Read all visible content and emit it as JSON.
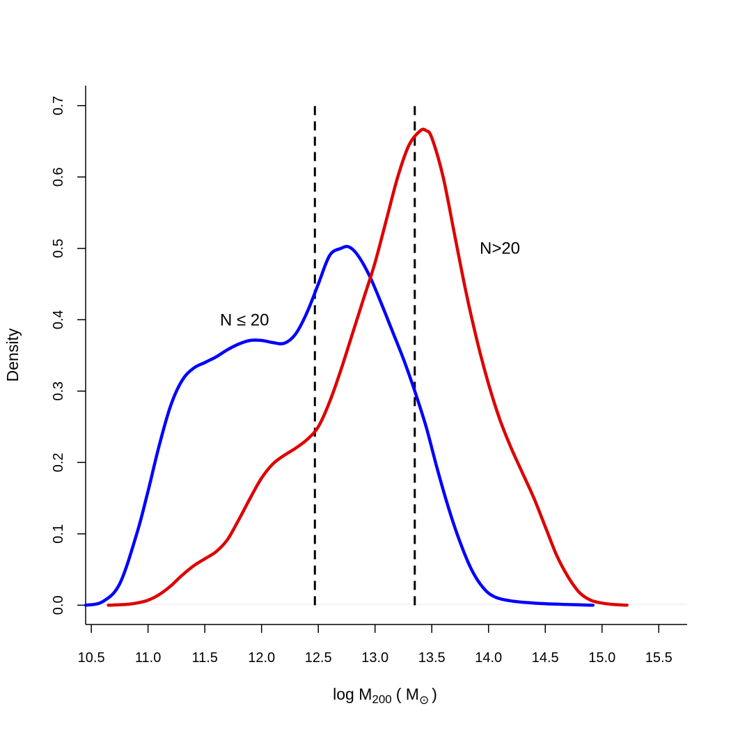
{
  "chart_data": {
    "type": "line",
    "title": "",
    "xlabel": "log M",
    "xlabel_subscript": "200",
    "xlabel_unit_open": "( M",
    "xlabel_unit_symbol": "⊙",
    "xlabel_unit_close": ")",
    "ylabel": "Density",
    "xlim": [
      10.45,
      15.75
    ],
    "ylim": [
      -0.027,
      0.728
    ],
    "xticks": [
      10.5,
      11.0,
      11.5,
      12.0,
      12.5,
      13.0,
      13.5,
      14.0,
      14.5,
      15.0,
      15.5
    ],
    "xtick_labels": [
      "10.5",
      "11.0",
      "11.5",
      "12.0",
      "12.5",
      "13.0",
      "13.5",
      "14.0",
      "14.5",
      "15.0",
      "15.5"
    ],
    "yticks": [
      0.0,
      0.1,
      0.2,
      0.3,
      0.4,
      0.5,
      0.6,
      0.7
    ],
    "ytick_labels": [
      "0.0",
      "0.1",
      "0.2",
      "0.3",
      "0.4",
      "0.5",
      "0.6",
      "0.7"
    ],
    "series": [
      {
        "name": "N ≤ 20",
        "color": "#0000ff",
        "x": [
          10.45,
          10.6,
          10.75,
          10.9,
          11.0,
          11.1,
          11.2,
          11.3,
          11.4,
          11.5,
          11.6,
          11.7,
          11.8,
          11.9,
          12.0,
          12.1,
          12.2,
          12.3,
          12.4,
          12.5,
          12.6,
          12.7,
          12.77,
          12.85,
          12.95,
          13.05,
          13.15,
          13.25,
          13.35,
          13.45,
          13.55,
          13.65,
          13.75,
          13.85,
          13.95,
          14.05,
          14.2,
          14.4,
          14.6,
          14.8,
          14.92
        ],
        "y": [
          0.0,
          0.005,
          0.03,
          0.1,
          0.16,
          0.225,
          0.28,
          0.315,
          0.332,
          0.34,
          0.348,
          0.358,
          0.366,
          0.371,
          0.371,
          0.368,
          0.367,
          0.38,
          0.41,
          0.45,
          0.49,
          0.5,
          0.502,
          0.49,
          0.462,
          0.425,
          0.385,
          0.345,
          0.3,
          0.25,
          0.19,
          0.135,
          0.088,
          0.05,
          0.025,
          0.012,
          0.006,
          0.003,
          0.0015,
          0.0005,
          0.0
        ]
      },
      {
        "name": "N>20",
        "color": "#dd0000",
        "x": [
          10.65,
          10.8,
          10.9,
          11.0,
          11.1,
          11.2,
          11.3,
          11.4,
          11.5,
          11.6,
          11.7,
          11.8,
          11.9,
          12.0,
          12.1,
          12.2,
          12.3,
          12.4,
          12.5,
          12.6,
          12.7,
          12.8,
          12.9,
          13.0,
          13.1,
          13.2,
          13.3,
          13.4,
          13.45,
          13.5,
          13.6,
          13.7,
          13.8,
          13.9,
          14.0,
          14.1,
          14.2,
          14.3,
          14.4,
          14.5,
          14.6,
          14.7,
          14.8,
          14.9,
          15.0,
          15.1,
          15.22
        ],
        "y": [
          0.0,
          0.001,
          0.003,
          0.007,
          0.015,
          0.027,
          0.042,
          0.055,
          0.065,
          0.075,
          0.092,
          0.12,
          0.15,
          0.178,
          0.198,
          0.21,
          0.22,
          0.232,
          0.25,
          0.285,
          0.33,
          0.38,
          0.43,
          0.48,
          0.54,
          0.6,
          0.645,
          0.665,
          0.665,
          0.655,
          0.6,
          0.52,
          0.44,
          0.37,
          0.31,
          0.26,
          0.22,
          0.185,
          0.15,
          0.11,
          0.07,
          0.04,
          0.018,
          0.007,
          0.003,
          0.001,
          0.0
        ]
      }
    ],
    "vlines": [
      {
        "name": "left-cut",
        "x": 12.47,
        "y_top": 0.7
      },
      {
        "name": "right-cut",
        "x": 13.35,
        "y_top": 0.7
      }
    ],
    "annotations": [
      {
        "name": "low-n",
        "text": "N ≤ 20",
        "x": 11.85,
        "y": 0.4
      },
      {
        "name": "high-n",
        "text": "N>20",
        "x": 14.1,
        "y": 0.5
      }
    ]
  }
}
